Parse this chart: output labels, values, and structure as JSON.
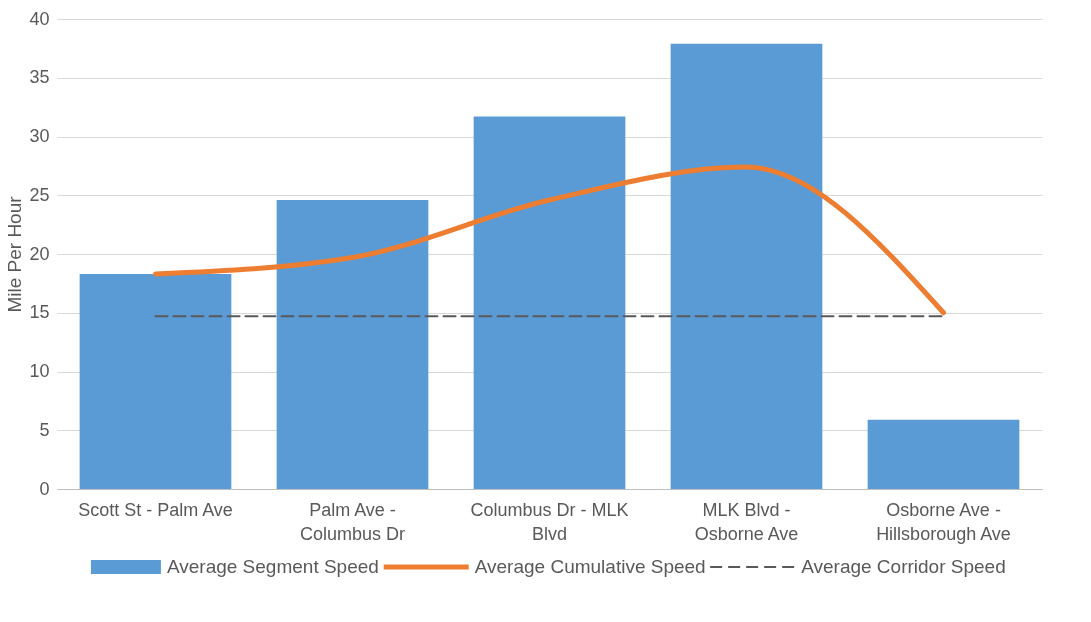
{
  "chart_data": {
    "type": "bar",
    "ylabel": "Mile Per Hour",
    "categories": [
      "Scott St - Palm Ave",
      "Palm Ave - Columbus Dr",
      "Columbus Dr - MLK Blvd",
      "MLK Blvd - Osborne Ave",
      "Osborne Ave - Hillsborough Ave"
    ],
    "series": [
      {
        "name": "Average Segment Speed",
        "color": "#5b9bd5",
        "values": [
          18.3,
          24.6,
          31.7,
          37.9,
          5.9
        ]
      },
      {
        "name": "Average Cumulative Speed",
        "type": "line",
        "color": "#ed7d31",
        "values": [
          18.3,
          19.7,
          24.6,
          27.4,
          15.0
        ]
      },
      {
        "name": "Average Corridor Speed",
        "type": "line",
        "line_style": "dashed",
        "color": "#595959",
        "values": [
          14.7,
          14.7,
          14.7,
          14.7,
          14.7
        ]
      }
    ],
    "ylim": [
      0,
      40
    ],
    "yticks": [
      0,
      5,
      10,
      15,
      20,
      25,
      30,
      35,
      40
    ],
    "grid": "y",
    "legend": "bottom"
  }
}
